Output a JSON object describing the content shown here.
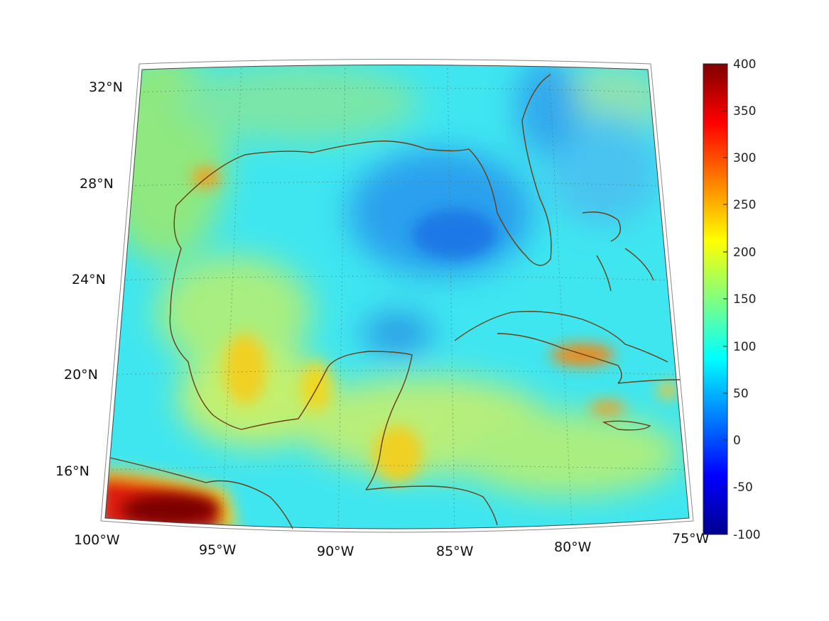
{
  "map": {
    "projection": "conic",
    "latitude_labels": [
      "32°N",
      "28°N",
      "24°N",
      "20°N",
      "16°N"
    ],
    "longitude_labels": [
      "100°W",
      "95°W",
      "90°W",
      "85°W",
      "80°W",
      "75°W"
    ],
    "coastline_color": "#6b3d12",
    "gridlines": "dashed"
  },
  "colorbar": {
    "colormap": "jet",
    "ticks": [
      "400",
      "350",
      "300",
      "250",
      "200",
      "150",
      "100",
      "50",
      "0",
      "-50",
      "-100"
    ],
    "range": [
      -100,
      400
    ]
  }
}
